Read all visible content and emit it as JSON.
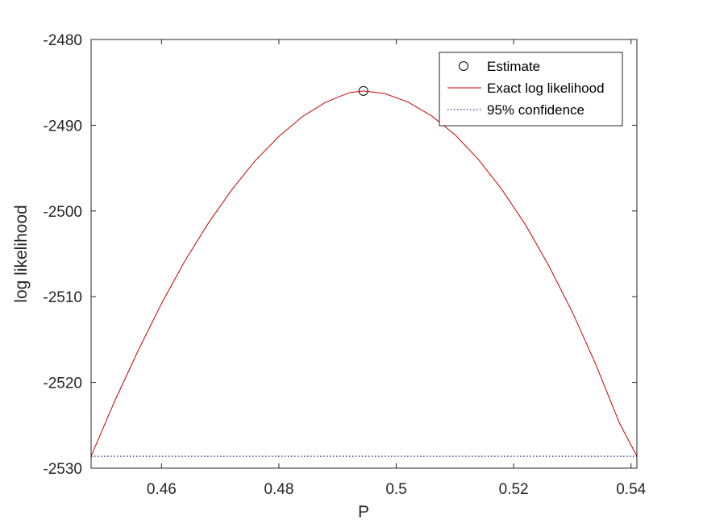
{
  "chart_data": {
    "type": "line",
    "xlabel": "P",
    "ylabel": "log likelihood",
    "xlim": [
      0.448,
      0.541
    ],
    "ylim": [
      -2530,
      -2480
    ],
    "xticks": [
      0.46,
      0.48,
      0.5,
      0.52,
      0.54
    ],
    "xtick_labels": [
      "0.46",
      "0.48",
      "0.5",
      "0.52",
      "0.54"
    ],
    "yticks": [
      -2530,
      -2520,
      -2510,
      -2500,
      -2490,
      -2480
    ],
    "ytick_labels": [
      "-2530",
      "-2520",
      "-2510",
      "-2500",
      "-2490",
      "-2480"
    ],
    "grid": false,
    "legend_position": "top-right",
    "series": [
      {
        "name": "Estimate",
        "style": "marker-circle",
        "color": "#000000",
        "x": [
          0.4944
        ],
        "y": [
          -2486.0
        ]
      },
      {
        "name": "Exact log likelihood",
        "style": "line",
        "color": "#cc0000",
        "x": [
          0.448,
          0.452,
          0.456,
          0.46,
          0.464,
          0.468,
          0.472,
          0.476,
          0.48,
          0.484,
          0.488,
          0.492,
          0.4944,
          0.498,
          0.502,
          0.506,
          0.51,
          0.514,
          0.518,
          0.522,
          0.526,
          0.53,
          0.534,
          0.538,
          0.541
        ],
        "y": [
          -2528.6,
          -2522.2,
          -2516.3,
          -2510.8,
          -2505.8,
          -2501.4,
          -2497.5,
          -2494.1,
          -2491.3,
          -2489.0,
          -2487.3,
          -2486.2,
          -2486.0,
          -2486.3,
          -2487.3,
          -2488.9,
          -2491.1,
          -2494.0,
          -2497.5,
          -2501.6,
          -2506.4,
          -2511.8,
          -2517.9,
          -2524.7,
          -2528.6
        ]
      },
      {
        "name": "95% confidence",
        "style": "dotted",
        "color": "#000080",
        "x": [
          0.448,
          0.541
        ],
        "y": [
          -2528.6,
          -2528.6
        ]
      }
    ]
  }
}
